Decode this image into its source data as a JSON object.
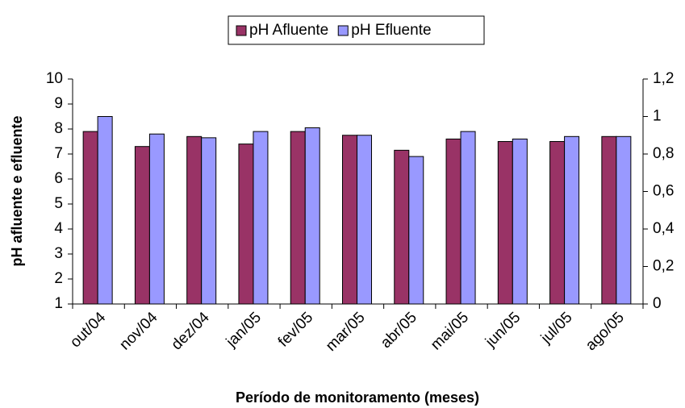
{
  "chart_data": {
    "type": "bar",
    "categories": [
      "out/04",
      "nov/04",
      "dez/04",
      "jan/05",
      "fev/05",
      "mar/05",
      "abr/05",
      "mai/05",
      "jun/05",
      "jul/05",
      "ago/05"
    ],
    "series": [
      {
        "name": "pH Afluente",
        "color": "#993366",
        "values": [
          7.9,
          7.3,
          7.7,
          7.4,
          7.9,
          7.75,
          7.15,
          7.6,
          7.5,
          7.5,
          7.7
        ]
      },
      {
        "name": "pH Efluente",
        "color": "#9999ff",
        "values": [
          8.5,
          7.8,
          7.65,
          7.9,
          8.05,
          7.75,
          6.9,
          7.9,
          7.6,
          7.7,
          7.7
        ]
      }
    ],
    "y_label": "pH afluente e efluente",
    "x_label": "Período de monitoramento (meses)",
    "ylim": [
      1,
      10
    ],
    "yticks": [
      1,
      2,
      3,
      4,
      5,
      6,
      7,
      8,
      9,
      10
    ],
    "y2lim": [
      0,
      1.2
    ],
    "y2ticks": [
      0,
      {
        "value": 0.2,
        "label": "0,2"
      },
      {
        "value": 0.4,
        "label": "0,4"
      },
      {
        "value": 0.6,
        "label": "0,6"
      },
      {
        "value": 0.8,
        "label": "0,8"
      },
      1,
      {
        "value": 1.2,
        "label": "1,2"
      }
    ],
    "legend": "top"
  }
}
